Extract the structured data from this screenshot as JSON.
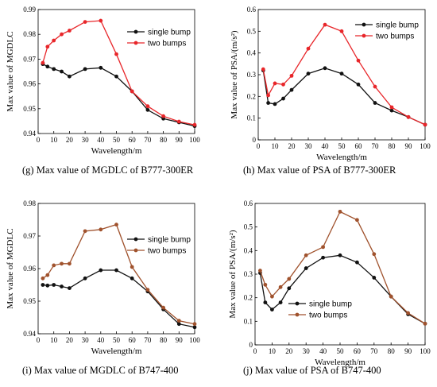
{
  "chart_data": [
    {
      "id": "g",
      "type": "line",
      "caption_tag": "(g)",
      "caption_text": "Max value of MGDLC of B777-300ER",
      "xlabel": "Wavelength/m",
      "ylabel": "Max value of MGDLC",
      "xlim": [
        0,
        100
      ],
      "ylim": [
        0.94,
        0.99
      ],
      "xticks": [
        "0",
        "10",
        "20",
        "30",
        "40",
        "50",
        "60",
        "70",
        "80",
        "90",
        "100"
      ],
      "yticks": [
        "0.94",
        "0.95",
        "0.96",
        "0.97",
        "0.98",
        "0.99"
      ],
      "legend": "top-right",
      "series": [
        {
          "name": "single bump",
          "color": "#111111",
          "x": [
            3,
            6,
            10,
            15,
            20,
            30,
            40,
            50,
            60,
            70,
            80,
            90,
            100
          ],
          "y": [
            0.968,
            0.967,
            0.966,
            0.965,
            0.963,
            0.966,
            0.9665,
            0.963,
            0.957,
            0.9495,
            0.946,
            0.9445,
            0.943
          ]
        },
        {
          "name": "two bumps",
          "color": "#e8262a",
          "x": [
            3,
            6,
            10,
            15,
            20,
            30,
            40,
            50,
            60,
            70,
            80,
            90,
            100
          ],
          "y": [
            0.9685,
            0.975,
            0.9775,
            0.98,
            0.9815,
            0.985,
            0.9855,
            0.972,
            0.957,
            0.951,
            0.947,
            0.9448,
            0.9435
          ]
        }
      ]
    },
    {
      "id": "h",
      "type": "line",
      "caption_tag": "(h)",
      "caption_text": "Max value of PSA of B777-300ER",
      "xlabel": "Wavelength/m",
      "ylabel": "Max value of PSA/(m/s²)",
      "xlim": [
        0,
        100
      ],
      "ylim": [
        0,
        0.6
      ],
      "xticks": [
        "0",
        "10",
        "20",
        "30",
        "40",
        "50",
        "60",
        "70",
        "80",
        "90",
        "100"
      ],
      "yticks": [
        "0",
        "0.1",
        "0.2",
        "0.3",
        "0.4",
        "0.5",
        "0.6"
      ],
      "legend": "top-right",
      "series": [
        {
          "name": "single bump",
          "color": "#111111",
          "x": [
            3,
            6,
            10,
            15,
            20,
            30,
            40,
            50,
            60,
            70,
            80,
            90,
            100
          ],
          "y": [
            0.32,
            0.17,
            0.165,
            0.19,
            0.23,
            0.305,
            0.33,
            0.305,
            0.255,
            0.17,
            0.135,
            0.105,
            0.07
          ]
        },
        {
          "name": "two bumps",
          "color": "#e8262a",
          "x": [
            3,
            6,
            10,
            15,
            20,
            30,
            40,
            50,
            60,
            70,
            80,
            90,
            100
          ],
          "y": [
            0.325,
            0.205,
            0.26,
            0.255,
            0.295,
            0.42,
            0.53,
            0.5,
            0.365,
            0.245,
            0.15,
            0.105,
            0.07
          ]
        }
      ]
    },
    {
      "id": "i",
      "type": "line",
      "caption_tag": "(i)",
      "caption_text": "Max value of MGDLC of B747-400",
      "xlabel": "Wavelength/m",
      "ylabel": "Max value of MGDLC",
      "xlim": [
        0,
        100
      ],
      "ylim": [
        0.94,
        0.98
      ],
      "xticks": [
        "0",
        "10",
        "20",
        "30",
        "40",
        "50",
        "60",
        "70",
        "80",
        "90",
        "100"
      ],
      "yticks": [
        "0.94",
        "0.95",
        "0.96",
        "0.97",
        "0.98"
      ],
      "legend": "top-right",
      "series": [
        {
          "name": "single bump",
          "color": "#111111",
          "x": [
            3,
            6,
            10,
            15,
            20,
            30,
            40,
            50,
            60,
            70,
            80,
            90,
            100
          ],
          "y": [
            0.955,
            0.9548,
            0.955,
            0.9545,
            0.954,
            0.957,
            0.9595,
            0.9595,
            0.957,
            0.953,
            0.9475,
            0.943,
            0.942
          ]
        },
        {
          "name": "two bumps",
          "color": "#a0522d",
          "x": [
            3,
            6,
            10,
            15,
            20,
            30,
            40,
            50,
            60,
            70,
            80,
            90,
            100
          ],
          "y": [
            0.957,
            0.958,
            0.961,
            0.9615,
            0.9615,
            0.9715,
            0.972,
            0.9735,
            0.9605,
            0.9535,
            0.948,
            0.944,
            0.943
          ]
        }
      ]
    },
    {
      "id": "j",
      "type": "line",
      "caption_tag": "(j)",
      "caption_text": "Max value of PSA of B747-400",
      "xlabel": "Wavelength/m",
      "ylabel": "Max value of PSA/(m/s²)",
      "xlim": [
        0,
        100
      ],
      "ylim": [
        0,
        0.6
      ],
      "xticks": [
        "0",
        "10",
        "20",
        "30",
        "40",
        "50",
        "60",
        "70",
        "80",
        "90",
        "100"
      ],
      "yticks": [
        "0",
        "0.1",
        "0.2",
        "0.3",
        "0.4",
        "0.5",
        "0.6"
      ],
      "legend": "bottom-center",
      "series": [
        {
          "name": "single bump",
          "color": "#111111",
          "x": [
            3,
            6,
            10,
            15,
            20,
            30,
            40,
            50,
            60,
            70,
            80,
            90,
            100
          ],
          "y": [
            0.305,
            0.18,
            0.15,
            0.18,
            0.24,
            0.325,
            0.37,
            0.38,
            0.35,
            0.285,
            0.205,
            0.13,
            0.09
          ]
        },
        {
          "name": "two bumps",
          "color": "#a0522d",
          "x": [
            3,
            6,
            10,
            15,
            20,
            30,
            40,
            50,
            60,
            70,
            80,
            90,
            100
          ],
          "y": [
            0.315,
            0.255,
            0.205,
            0.245,
            0.28,
            0.38,
            0.415,
            0.565,
            0.53,
            0.385,
            0.205,
            0.135,
            0.09
          ]
        }
      ]
    }
  ]
}
